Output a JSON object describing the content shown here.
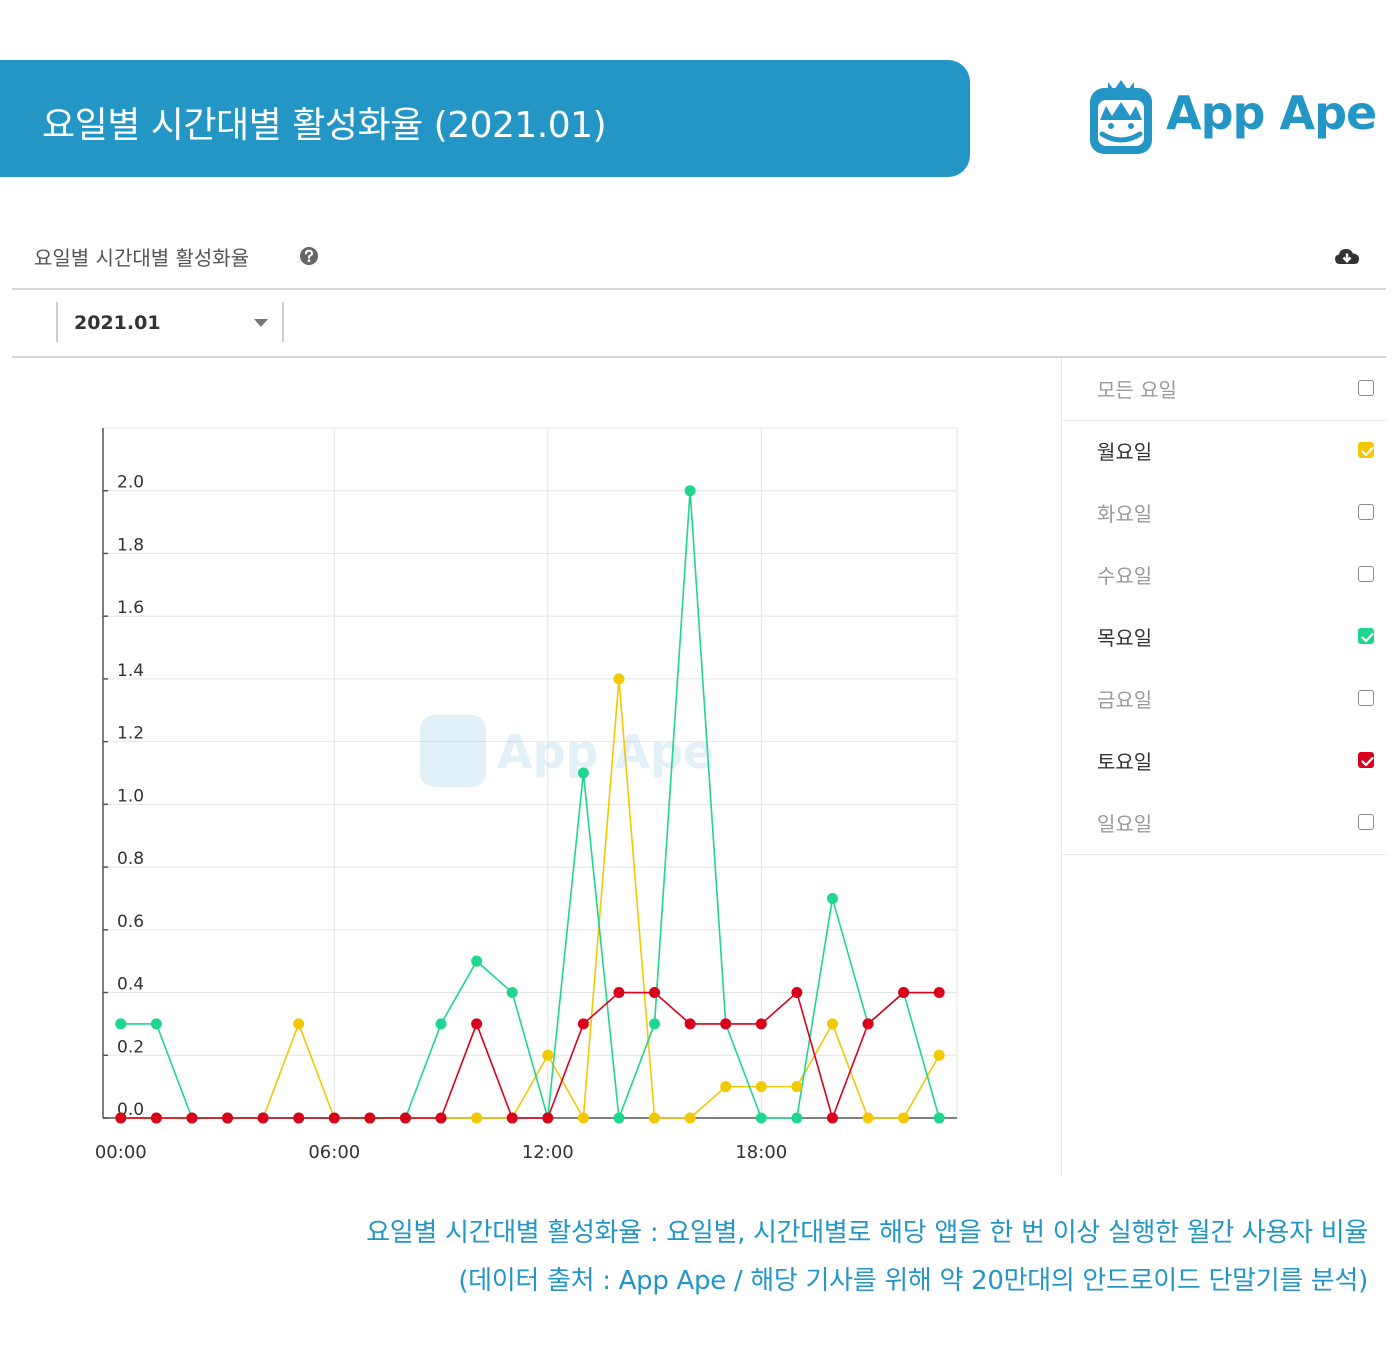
{
  "banner": {
    "title": "요일별 시간대별 활성화율 (2021.01)"
  },
  "logo": {
    "text": "App Ape",
    "watermark_text": "App Ape",
    "color": "#2496c6"
  },
  "panel": {
    "title": "요일별 시간대별 활성화율",
    "help_icon": "question-circle-icon",
    "download_icon": "cloud-download-icon"
  },
  "filter": {
    "month": "2021.01"
  },
  "legend": {
    "items": [
      {
        "label": "모든 요일",
        "checked": false,
        "color": "#8a8a8a"
      },
      {
        "label": "월요일",
        "checked": true,
        "color": "#f2c800"
      },
      {
        "label": "화요일",
        "checked": false,
        "color": "#8a8a8a"
      },
      {
        "label": "수요일",
        "checked": false,
        "color": "#8a8a8a"
      },
      {
        "label": "목요일",
        "checked": true,
        "color": "#1ed68f"
      },
      {
        "label": "금요일",
        "checked": false,
        "color": "#8a8a8a"
      },
      {
        "label": "토요일",
        "checked": true,
        "color": "#d9001b"
      },
      {
        "label": "일요일",
        "checked": false,
        "color": "#8a8a8a"
      }
    ]
  },
  "chart_data": {
    "type": "line",
    "x": [
      0,
      1,
      2,
      3,
      4,
      5,
      6,
      7,
      8,
      9,
      10,
      11,
      12,
      13,
      14,
      15,
      16,
      17,
      18,
      19,
      20,
      21,
      22,
      23
    ],
    "xticks": [
      {
        "value": 0,
        "label": "00:00"
      },
      {
        "value": 6,
        "label": "06:00"
      },
      {
        "value": 12,
        "label": "12:00"
      },
      {
        "value": 18,
        "label": "18:00"
      }
    ],
    "yticks": [
      0.0,
      0.2,
      0.4,
      0.6,
      0.8,
      1.0,
      1.2,
      1.4,
      1.6,
      1.8,
      2.0
    ],
    "ytick_labels": [
      "0.0",
      "0.2",
      "0.4",
      "0.6",
      "0.8",
      "1.0",
      "1.2",
      "1.4",
      "1.6",
      "1.8",
      "2.0"
    ],
    "xlim": [
      -0.5,
      23.5
    ],
    "ylim": [
      0,
      2.2
    ],
    "grid": true,
    "series": [
      {
        "name": "월요일",
        "color": "#f2c800",
        "values": [
          0,
          0,
          0,
          0,
          0,
          0.3,
          0,
          0,
          0,
          0,
          0,
          0,
          0.2,
          0,
          1.4,
          0,
          0,
          0.1,
          0.1,
          0.1,
          0.3,
          0,
          0,
          0.2
        ]
      },
      {
        "name": "목요일",
        "color": "#1ed68f",
        "values": [
          0.3,
          0.3,
          0,
          0,
          0,
          0,
          0,
          0,
          0,
          0.3,
          0.5,
          0.4,
          0,
          1.1,
          0,
          0.3,
          2.0,
          0.3,
          0,
          0,
          0.7,
          0.3,
          0.4,
          0
        ]
      },
      {
        "name": "토요일",
        "color": "#d9001b",
        "values": [
          0,
          0,
          0,
          0,
          0,
          0,
          0,
          0,
          0,
          0,
          0.3,
          0,
          0,
          0.3,
          0.4,
          0.4,
          0.3,
          0.3,
          0.3,
          0.4,
          0,
          0.3,
          0.4,
          0.4
        ]
      }
    ]
  },
  "footnote": {
    "line1": "요일별 시간대별 활성화율 : 요일별, 시간대별로 해당 앱을 한 번 이상 실행한 월간 사용자 비율",
    "line2": "(데이터 출처 : App Ape / 해당 기사를 위해 약 20만대의 안드로이드 단말기를 분석)"
  }
}
